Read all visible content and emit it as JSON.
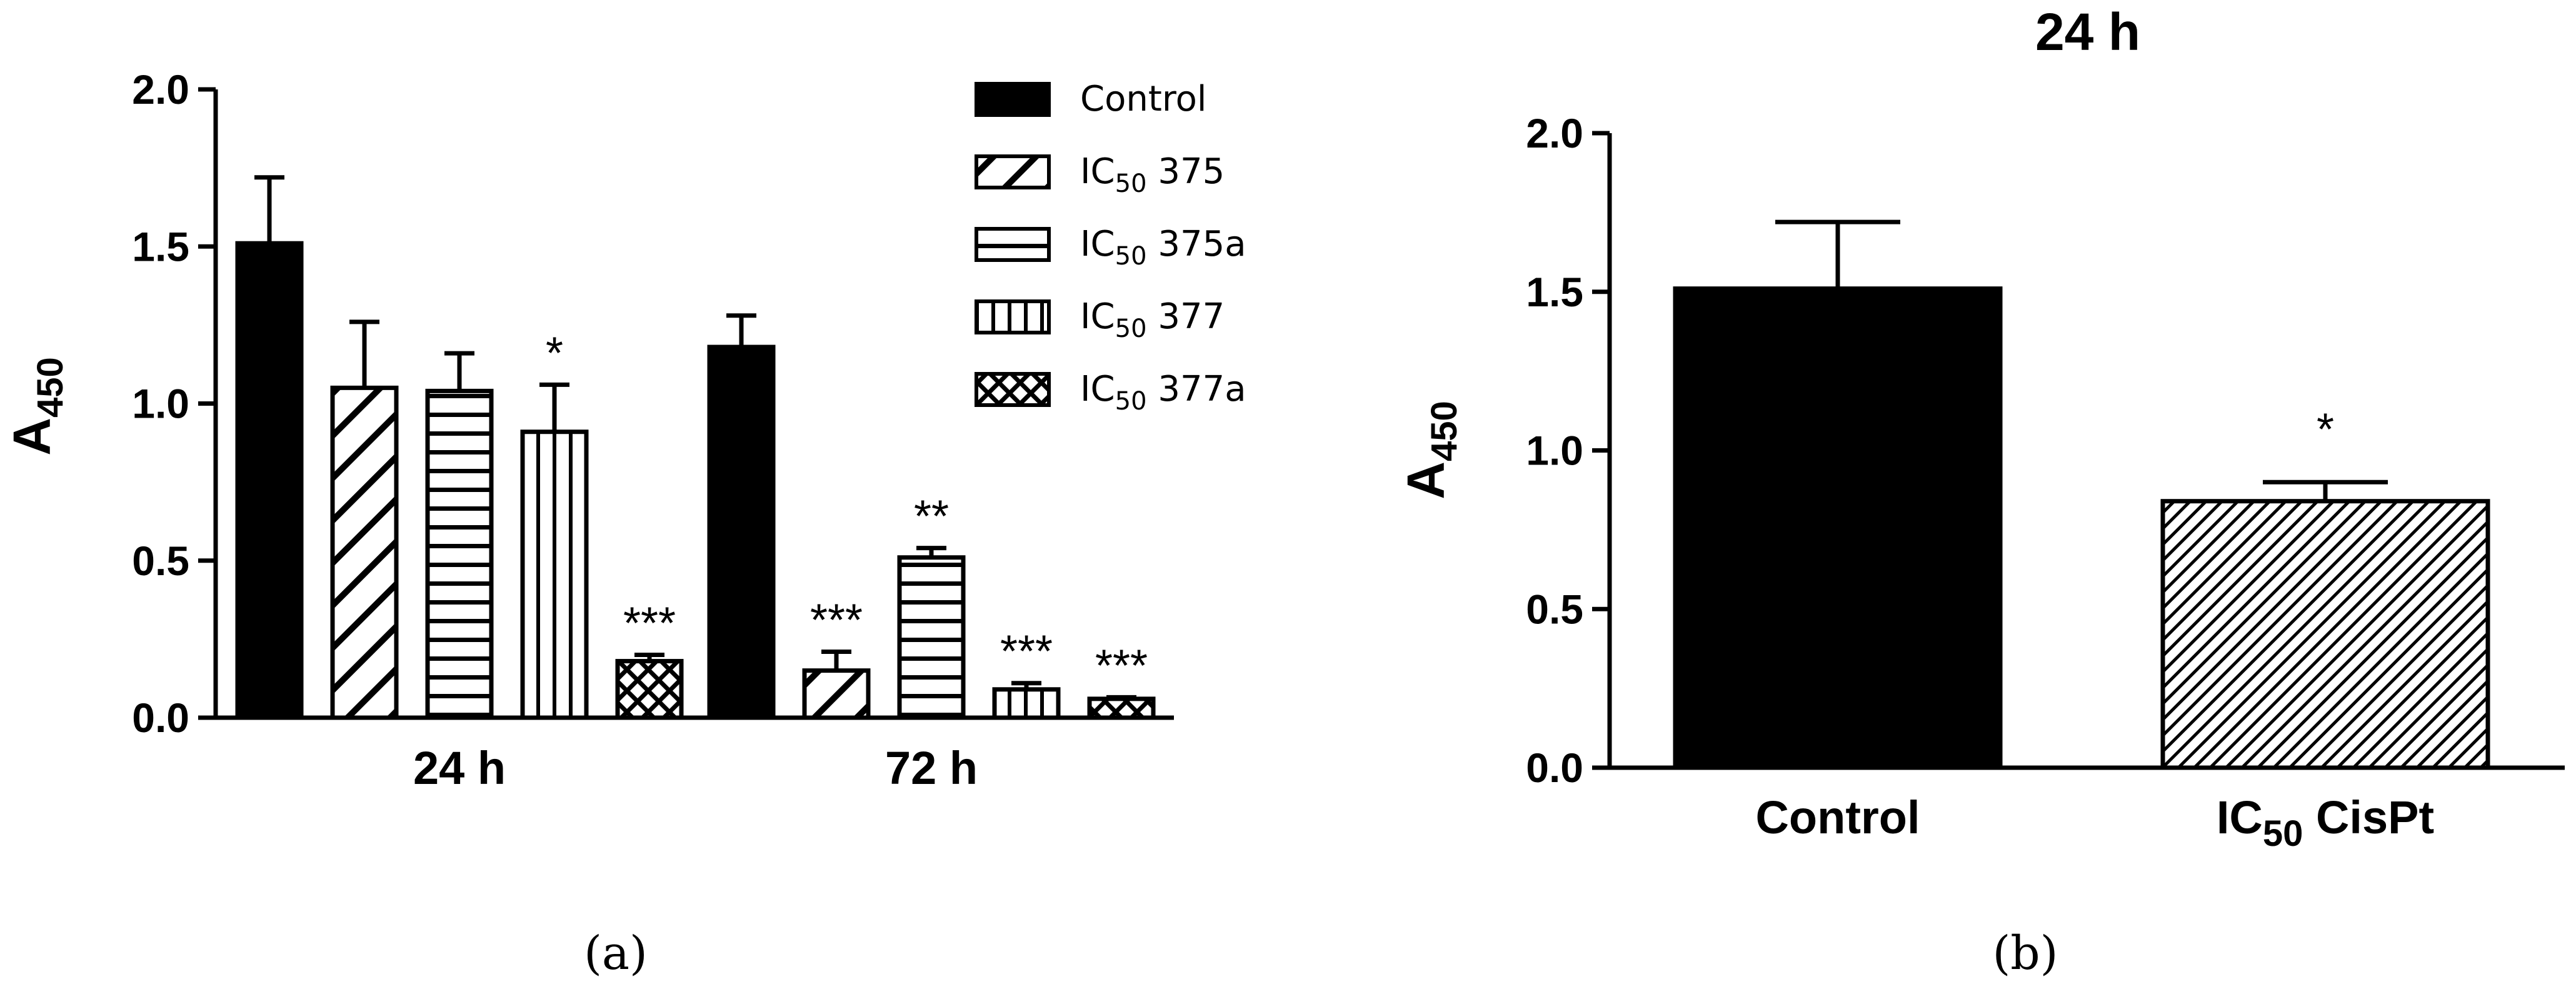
{
  "chart_data": [
    {
      "panel": "a",
      "type": "bar",
      "panel_label": "(a)",
      "title": "",
      "xlabel": "",
      "ylabel": {
        "main": "A",
        "sub": "450"
      },
      "ylim": [
        0,
        2.0
      ],
      "yticks": [
        "0.0",
        "0.5",
        "1.0",
        "1.5",
        "2.0"
      ],
      "ytick_values": [
        0,
        0.5,
        1.0,
        1.5,
        2.0
      ],
      "categories": [
        "24 h",
        "72 h"
      ],
      "legend_position": "top-right",
      "series": [
        {
          "name": {
            "pre": "Control",
            "sub": "",
            "post": ""
          },
          "pattern": "solid",
          "values": [
            1.51,
            1.18
          ],
          "errors": [
            0.21,
            0.1
          ],
          "sig": [
            "",
            ""
          ]
        },
        {
          "name": {
            "pre": "IC",
            "sub": "50",
            "post": " 375"
          },
          "pattern": "diag",
          "values": [
            1.05,
            0.15
          ],
          "errors": [
            0.21,
            0.06
          ],
          "sig": [
            "",
            "***"
          ]
        },
        {
          "name": {
            "pre": "IC",
            "sub": "50",
            "post": " 375a"
          },
          "pattern": "hlines",
          "values": [
            1.04,
            0.51
          ],
          "errors": [
            0.12,
            0.03
          ],
          "sig": [
            "",
            "**"
          ]
        },
        {
          "name": {
            "pre": "IC",
            "sub": "50",
            "post": " 377"
          },
          "pattern": "vlines",
          "values": [
            0.91,
            0.09
          ],
          "errors": [
            0.15,
            0.02
          ],
          "sig": [
            "*",
            "***"
          ]
        },
        {
          "name": {
            "pre": "IC",
            "sub": "50",
            "post": " 377a"
          },
          "pattern": "cross",
          "values": [
            0.18,
            0.06
          ],
          "errors": [
            0.02,
            0.005
          ],
          "sig": [
            "***",
            "***"
          ]
        }
      ]
    },
    {
      "panel": "b",
      "type": "bar",
      "panel_label": "(b)",
      "title": "24 h",
      "xlabel": "",
      "ylabel": {
        "main": "A",
        "sub": "450"
      },
      "ylim": [
        0,
        2.0
      ],
      "yticks": [
        "0.0",
        "0.5",
        "1.0",
        "1.5",
        "2.0"
      ],
      "ytick_values": [
        0,
        0.5,
        1.0,
        1.5,
        2.0
      ],
      "categories": [
        {
          "pre": "Control",
          "sub": "",
          "post": ""
        },
        {
          "pre": "IC",
          "sub": "50",
          "post": " CisPt"
        }
      ],
      "values": [
        1.51,
        0.84
      ],
      "errors": [
        0.21,
        0.06
      ],
      "patterns": [
        "solid",
        "finediag"
      ],
      "sig": [
        "",
        "*"
      ]
    }
  ]
}
